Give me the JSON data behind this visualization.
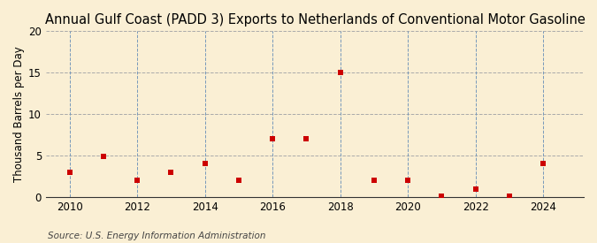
{
  "title": "Annual Gulf Coast (PADD 3) Exports to Netherlands of Conventional Motor Gasoline",
  "ylabel": "Thousand Barrels per Day",
  "source": "Source: U.S. Energy Information Administration",
  "background_color": "#faefd4",
  "plot_bg_color": "#faefd4",
  "years": [
    2010,
    2011,
    2012,
    2013,
    2014,
    2015,
    2016,
    2017,
    2018,
    2019,
    2020,
    2021,
    2022,
    2023,
    2024
  ],
  "values": [
    3.0,
    4.9,
    2.0,
    3.0,
    4.0,
    2.0,
    7.0,
    7.0,
    15.0,
    2.0,
    2.0,
    0.1,
    1.0,
    0.1,
    4.0
  ],
  "marker_color": "#cc0000",
  "marker": "s",
  "marker_size": 4,
  "xlim": [
    2009.3,
    2025.2
  ],
  "ylim": [
    0,
    20
  ],
  "yticks": [
    0,
    5,
    10,
    15,
    20
  ],
  "xticks": [
    2010,
    2012,
    2014,
    2016,
    2018,
    2020,
    2022,
    2024
  ],
  "hgrid_color": "#aaaaaa",
  "vgrid_color": "#7799bb",
  "hgrid_style": "--",
  "vgrid_style": "--",
  "title_fontsize": 10.5,
  "axis_label_fontsize": 8.5,
  "tick_fontsize": 8.5,
  "source_fontsize": 7.5
}
